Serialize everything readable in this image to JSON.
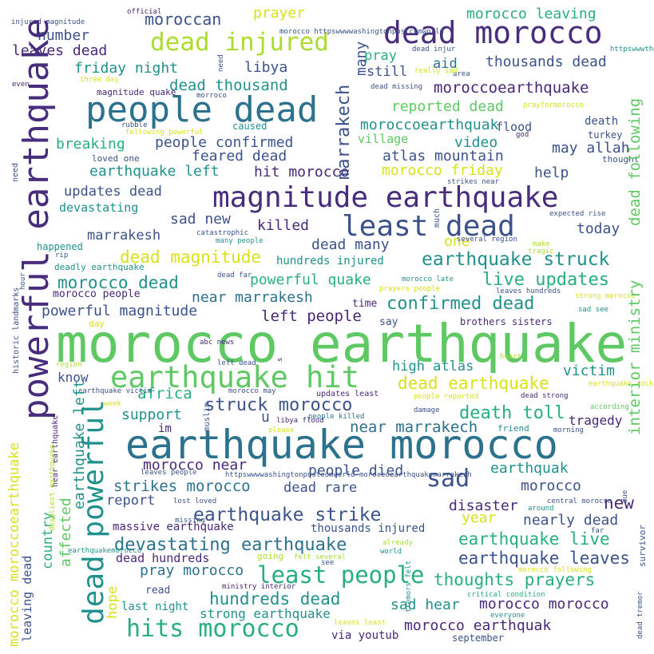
{
  "palette": {
    "dpurple": "#472d7b",
    "purple": "#482878",
    "navy": "#3b528b",
    "blue": "#2c728e",
    "teal": "#21918c",
    "green": "#28ae80",
    "lgreen": "#5ec962",
    "lime": "#addc30",
    "yellow": "#d8e219",
    "byellow": "#fde725"
  },
  "words": [
    {
      "text": "morocco earthquake",
      "color": "lgreen"
    },
    {
      "text": "earthquake morocco",
      "color": "blue"
    },
    {
      "text": "powerful earthquake",
      "color": "dpurple"
    },
    {
      "text": "magnitude earthquake",
      "color": "lgreen"
    },
    {
      "text": "people dead",
      "color": "blue"
    },
    {
      "text": "dead morocco",
      "color": "dpurple"
    },
    {
      "text": "earthquake hit",
      "color": "lgreen"
    },
    {
      "text": "least dead",
      "color": "navy"
    },
    {
      "text": "dead injured",
      "color": "lime"
    },
    {
      "text": "dead powerful",
      "color": "teal"
    },
    {
      "text": "hits morocco",
      "color": "green"
    },
    {
      "text": "least people",
      "color": "green"
    },
    {
      "text": "earthquake strike",
      "color": "navy"
    },
    {
      "text": "devastating earthquake",
      "color": "blue"
    },
    {
      "text": "sad",
      "color": "navy"
    },
    {
      "text": "earthquake struck",
      "color": "teal"
    },
    {
      "text": "confirmed dead",
      "color": "teal"
    },
    {
      "text": "live updates",
      "color": "green"
    },
    {
      "text": "morocco dead",
      "color": "teal"
    },
    {
      "text": "dead magnitude",
      "color": "yellow"
    },
    {
      "text": "struck morocco",
      "color": "navy"
    },
    {
      "text": "death toll",
      "color": "green"
    },
    {
      "text": "dead earthquake",
      "color": "yellow"
    },
    {
      "text": "earthquake live",
      "color": "green"
    },
    {
      "text": "earthquake leaves",
      "color": "navy"
    },
    {
      "text": "hundreds dead",
      "color": "teal"
    },
    {
      "text": "thoughts prayers",
      "color": "green"
    },
    {
      "text": "pray morocco",
      "color": "blue"
    },
    {
      "text": "strikes morocco",
      "color": "blue"
    },
    {
      "text": "powerful quake",
      "color": "green"
    },
    {
      "text": "near marrakesh",
      "color": "blue"
    },
    {
      "text": "near marrakech",
      "color": "blue"
    },
    {
      "text": "left people",
      "color": "purple"
    },
    {
      "text": "powerful magnitude",
      "color": "navy"
    },
    {
      "text": "earthquake left",
      "color": "teal"
    },
    {
      "text": "people confirmed",
      "color": "navy"
    },
    {
      "text": "moroccoearthquake",
      "color": "purple"
    },
    {
      "text": "morocco friday",
      "color": "yellow"
    },
    {
      "text": "atlas mountain",
      "color": "navy"
    },
    {
      "text": "dead thousand",
      "color": "teal"
    },
    {
      "text": "moroccan",
      "color": "navy"
    },
    {
      "text": "friday night",
      "color": "teal"
    },
    {
      "text": "leaves dead",
      "color": "purple"
    },
    {
      "text": "number",
      "color": "navy"
    },
    {
      "text": "morocco leaving",
      "color": "green"
    },
    {
      "text": "thousands dead",
      "color": "navy"
    },
    {
      "text": "prayer",
      "color": "yellow"
    },
    {
      "text": "libya",
      "color": "navy"
    },
    {
      "text": "pray",
      "color": "green"
    },
    {
      "text": "aid",
      "color": "blue"
    },
    {
      "text": "still",
      "color": "navy"
    },
    {
      "text": "reported dead",
      "color": "lgreen"
    },
    {
      "text": "moroccoearthquak",
      "color": "teal"
    },
    {
      "text": "village",
      "color": "lgreen"
    },
    {
      "text": "video",
      "color": "teal"
    },
    {
      "text": "may allah",
      "color": "navy"
    },
    {
      "text": "help",
      "color": "navy"
    },
    {
      "text": "breaking",
      "color": "green"
    },
    {
      "text": "feared dead",
      "color": "navy"
    },
    {
      "text": "hit morocco",
      "color": "purple"
    },
    {
      "text": "updates dead",
      "color": "navy"
    },
    {
      "text": "devastating",
      "color": "teal"
    },
    {
      "text": "sad new",
      "color": "navy"
    },
    {
      "text": "marrakesh",
      "color": "navy"
    },
    {
      "text": "killed",
      "color": "purple"
    },
    {
      "text": "dead many",
      "color": "navy"
    },
    {
      "text": "one",
      "color": "yellow"
    },
    {
      "text": "today",
      "color": "navy"
    },
    {
      "text": "hundreds injured",
      "color": "teal"
    },
    {
      "text": "near marrakesh",
      "color": "navy"
    },
    {
      "text": "people died",
      "color": "navy"
    },
    {
      "text": "morocco near",
      "color": "purple"
    },
    {
      "text": "dead rare",
      "color": "navy"
    },
    {
      "text": "morocco",
      "color": "navy"
    },
    {
      "text": "earthquak",
      "color": "teal"
    },
    {
      "text": "report",
      "color": "navy"
    },
    {
      "text": "disaster",
      "color": "purple"
    },
    {
      "text": "new",
      "color": "purple"
    },
    {
      "text": "nearly dead",
      "color": "navy"
    },
    {
      "text": "year",
      "color": "yellow"
    },
    {
      "text": "massive earthquake",
      "color": "purple"
    },
    {
      "text": "thousands injured",
      "color": "navy"
    },
    {
      "text": "morocco morocco",
      "color": "purple"
    },
    {
      "text": "sad hear",
      "color": "teal"
    },
    {
      "text": "morocco earthquak",
      "color": "purple"
    },
    {
      "text": "strong earthquake",
      "color": "teal"
    },
    {
      "text": "via youtub",
      "color": "purple"
    },
    {
      "text": "september",
      "color": "navy"
    },
    {
      "text": "last night",
      "color": "teal"
    },
    {
      "text": "read",
      "color": "navy"
    },
    {
      "text": "hope",
      "color": "yellow"
    },
    {
      "text": "dead hundreds",
      "color": "purple"
    },
    {
      "text": "rare powerful",
      "color": "lgreen"
    },
    {
      "text": "country",
      "color": "green"
    },
    {
      "text": "affected",
      "color": "lgreen"
    },
    {
      "text": "know",
      "color": "navy"
    },
    {
      "text": "support",
      "color": "teal"
    },
    {
      "text": "africa",
      "color": "green"
    },
    {
      "text": "high atlas",
      "color": "teal"
    },
    {
      "text": "victim",
      "color": "teal"
    },
    {
      "text": "tragedy",
      "color": "purple"
    },
    {
      "text": "u",
      "color": "navy"
    },
    {
      "text": "im",
      "color": "purple"
    },
    {
      "text": "say",
      "color": "navy"
    },
    {
      "text": "time",
      "color": "purple"
    },
    {
      "text": "brothers sisters",
      "color": "purple"
    },
    {
      "text": "morocco people",
      "color": "purple"
    },
    {
      "text": "deadly earthquake",
      "color": "teal"
    },
    {
      "text": "happened",
      "color": "teal"
    },
    {
      "text": "marrakech",
      "color": "navy"
    },
    {
      "text": "many",
      "color": "navy"
    },
    {
      "text": "dead following",
      "color": "lgreen"
    },
    {
      "text": "interior ministry",
      "color": "lgreen"
    },
    {
      "text": "morocco moroccoearthquake",
      "color": "yellow"
    },
    {
      "text": "leaving dead",
      "color": "navy"
    },
    {
      "text": "earthquake left",
      "color": "teal"
    },
    {
      "text": "flood",
      "color": "navy"
    },
    {
      "text": "death",
      "color": "navy"
    },
    {
      "text": "turkey",
      "color": "navy"
    },
    {
      "text": "thought",
      "color": "navy"
    },
    {
      "text": "loved one",
      "color": "navy"
    },
    {
      "text": "magnitude quake",
      "color": "purple"
    },
    {
      "text": "caused",
      "color": "teal"
    },
    {
      "text": "expected rise",
      "color": "navy"
    },
    {
      "text": "strikes near",
      "color": "navy"
    },
    {
      "text": "catastrophic",
      "color": "navy"
    },
    {
      "text": "several region",
      "color": "navy"
    },
    {
      "text": "make",
      "color": "lime"
    },
    {
      "text": "tragic",
      "color": "lime"
    },
    {
      "text": "many people",
      "color": "teal"
    },
    {
      "text": "rip",
      "color": "navy"
    },
    {
      "text": "dead far",
      "color": "navy"
    },
    {
      "text": "prayers people",
      "color": "yellow"
    },
    {
      "text": "morocco late",
      "color": "teal"
    },
    {
      "text": "leaves hundreds",
      "color": "navy"
    },
    {
      "text": "strong morocco",
      "color": "yellow"
    },
    {
      "text": "sad see",
      "color": "teal"
    },
    {
      "text": "day",
      "color": "yellow"
    },
    {
      "text": "abc news",
      "color": "purple"
    },
    {
      "text": "left dead",
      "color": "navy"
    },
    {
      "text": "region",
      "color": "lime"
    },
    {
      "text": "earthquake victim",
      "color": "navy"
    },
    {
      "text": "morocco may",
      "color": "navy"
    },
    {
      "text": "updates least",
      "color": "purple"
    },
    {
      "text": "people reported",
      "color": "yellow"
    },
    {
      "text": "dead strong",
      "color": "purple"
    },
    {
      "text": "earthquake rocks",
      "color": "yellow"
    },
    {
      "text": "week",
      "color": "yellow"
    },
    {
      "text": "damage",
      "color": "navy"
    },
    {
      "text": "libya flood",
      "color": "purple"
    },
    {
      "text": "people killed",
      "color": "blue"
    },
    {
      "text": "please",
      "color": "yellow"
    },
    {
      "text": "friend",
      "color": "teal"
    },
    {
      "text": "morning",
      "color": "navy"
    },
    {
      "text": "according",
      "color": "lgreen"
    },
    {
      "text": "leaves people",
      "color": "navy"
    },
    {
      "text": "httpswwwwashingtonpostcomworld moroccoearthquakemarrakesh",
      "color": "navy"
    },
    {
      "text": "lost loved",
      "color": "navy"
    },
    {
      "text": "central morocco",
      "color": "navy"
    },
    {
      "text": "around",
      "color": "teal"
    },
    {
      "text": "far",
      "color": "navy"
    },
    {
      "text": "missing",
      "color": "navy"
    },
    {
      "text": "already",
      "color": "lime"
    },
    {
      "text": "world",
      "color": "teal"
    },
    {
      "text": "going",
      "color": "lime"
    },
    {
      "text": "felt several",
      "color": "lime"
    },
    {
      "text": "see",
      "color": "navy"
    },
    {
      "text": "earthquakemorocco",
      "color": "teal"
    },
    {
      "text": "ministry interior",
      "color": "purple"
    },
    {
      "text": "morocco following",
      "color": "yellow"
    },
    {
      "text": "critical condition",
      "color": "green"
    },
    {
      "text": "everyone",
      "color": "teal"
    },
    {
      "text": "leaves least",
      "color": "yellow"
    },
    {
      "text": "injured magnitude",
      "color": "navy"
    },
    {
      "text": "official",
      "color": "purple"
    },
    {
      "text": "morocco httpswwwwashingtonpostcomworld",
      "color": "navy"
    },
    {
      "text": "dead injur",
      "color": "navy"
    },
    {
      "text": "httpswwwtheguardiancomworld sep",
      "color": "teal"
    },
    {
      "text": "area",
      "color": "navy"
    },
    {
      "text": "really sad",
      "color": "yellow"
    },
    {
      "text": "dead missing",
      "color": "navy"
    },
    {
      "text": "even",
      "color": "purple"
    },
    {
      "text": "three day",
      "color": "yellow"
    },
    {
      "text": "morroco",
      "color": "navy"
    },
    {
      "text": "rubble",
      "color": "navy"
    },
    {
      "text": "following powerful",
      "color": "yellow"
    },
    {
      "text": "prayformorocco",
      "color": "yellow"
    },
    {
      "text": "god",
      "color": "purple"
    },
    {
      "text": "need",
      "color": "navy"
    },
    {
      "text": "much",
      "color": "navy"
    },
    {
      "text": "historic landmarks",
      "color": "navy"
    },
    {
      "text": "hour",
      "color": "navy"
    },
    {
      "text": "heart",
      "color": "lime"
    },
    {
      "text": "s",
      "color": "purple"
    },
    {
      "text": "muslim",
      "color": "navy"
    },
    {
      "text": "hear earthquake",
      "color": "purple"
    },
    {
      "text": "deadliest earthquake",
      "color": "lime"
    },
    {
      "text": "tremors felt",
      "color": "teal"
    },
    {
      "text": "due",
      "color": "navy"
    },
    {
      "text": "survivor",
      "color": "navy"
    },
    {
      "text": "dead tremor",
      "color": "navy"
    }
  ]
}
